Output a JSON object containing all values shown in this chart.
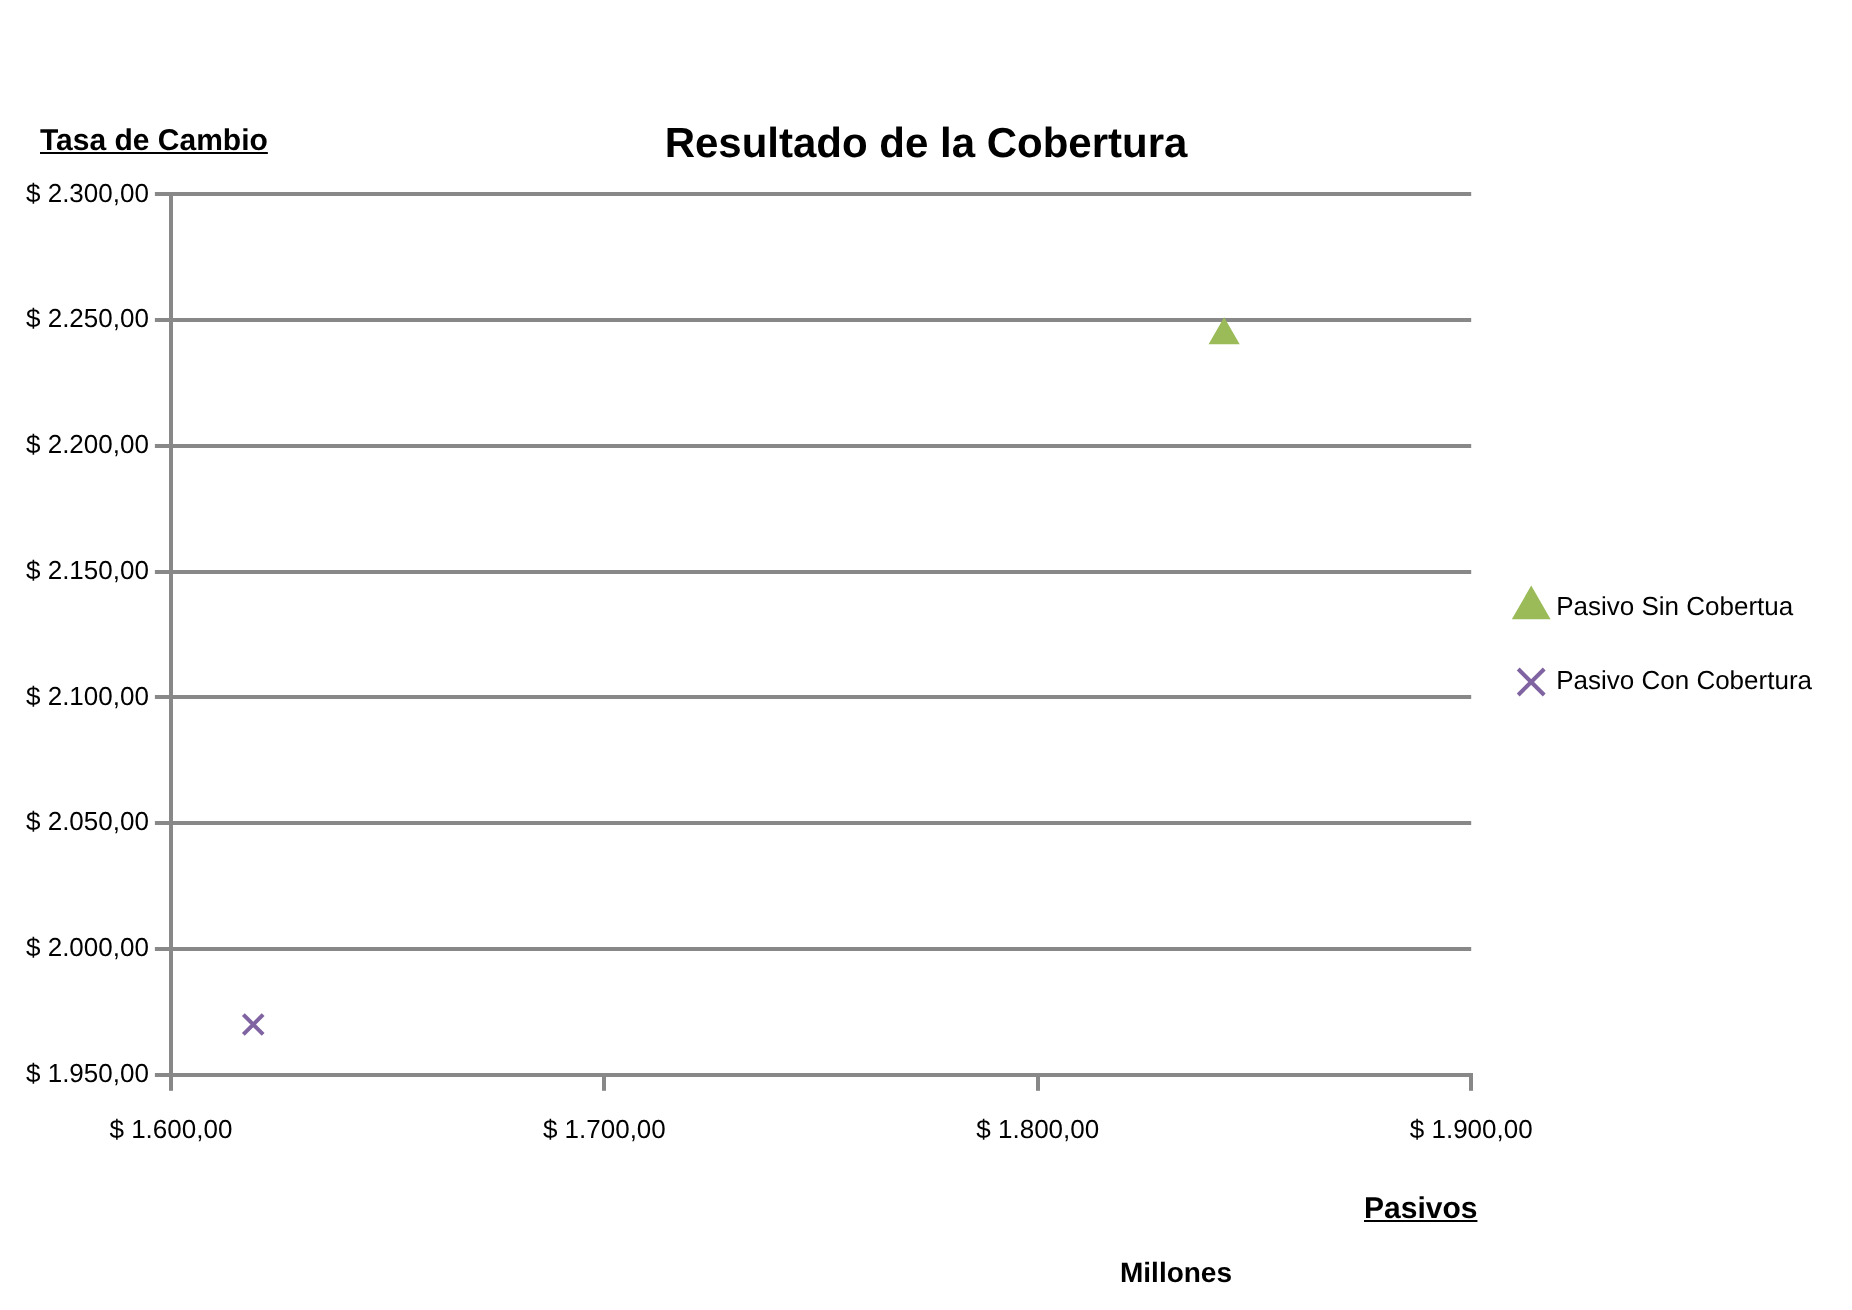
{
  "chart_data": {
    "type": "scatter",
    "title": "Resultado de la Cobertura",
    "xlabel": "Pasivos",
    "ylabel": "Tasa de Cambio",
    "annotations": [
      "Millones"
    ],
    "series": [
      {
        "name": "Pasivo Sin Cobertua",
        "color": "#9bbb59",
        "marker": "triangle",
        "x": [
          1843
        ],
        "values": [
          2244
        ]
      },
      {
        "name": "Pasivo Con Cobertura",
        "color": "#8064a2",
        "marker": "cross",
        "x": [
          1619
        ],
        "values": [
          1970
        ]
      }
    ],
    "xlim": [
      1600,
      1900
    ],
    "xticks": [
      {
        "value": 1600,
        "label": "$ 1.600,00"
      },
      {
        "value": 1700,
        "label": "$ 1.700,00"
      },
      {
        "value": 1800,
        "label": "$ 1.800,00"
      },
      {
        "value": 1900,
        "label": "$ 1.900,00"
      }
    ],
    "ylim": [
      1950,
      2300
    ],
    "yticks": [
      {
        "value": 1950,
        "label": "$ 1.950,00"
      },
      {
        "value": 2000,
        "label": "$ 2.000,00"
      },
      {
        "value": 2050,
        "label": "$ 2.050,00"
      },
      {
        "value": 2100,
        "label": "$ 2.100,00"
      },
      {
        "value": 2150,
        "label": "$ 2.150,00"
      },
      {
        "value": 2200,
        "label": "$ 2.200,00"
      },
      {
        "value": 2250,
        "label": "$ 2.250,00"
      },
      {
        "value": 2300,
        "label": "$ 2.300,00"
      }
    ],
    "grid": "y",
    "legend": "right"
  }
}
